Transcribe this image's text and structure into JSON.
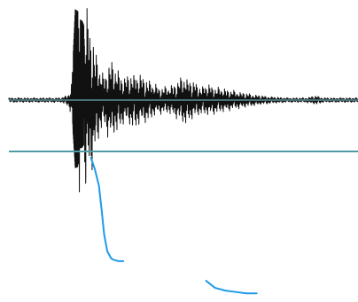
{
  "chart_data": {
    "type": "line",
    "title": "",
    "xlabel": "",
    "ylabel": "",
    "grid": false,
    "colors": {
      "background": "#ffffff",
      "waveform": "#111111",
      "baseline": "#6aa9b2",
      "axis_line": "#4f9aa6",
      "trace": "#1e9be8"
    },
    "series": [
      {
        "kind": "waveform",
        "x_range": [
          0,
          100
        ],
        "y_range": [
          -1,
          1
        ],
        "envelope": [
          [
            0,
            0.02
          ],
          [
            15,
            0.02
          ],
          [
            17,
            0.05
          ],
          [
            18,
            0.15
          ],
          [
            19,
            1.0
          ],
          [
            21,
            0.95
          ],
          [
            23,
            0.72
          ],
          [
            25,
            0.42
          ],
          [
            27,
            0.22
          ],
          [
            29,
            0.36
          ],
          [
            31,
            0.28
          ],
          [
            33,
            0.2
          ],
          [
            36,
            0.25
          ],
          [
            40,
            0.18
          ],
          [
            43,
            0.12
          ],
          [
            46,
            0.12
          ],
          [
            48,
            0.16
          ],
          [
            50,
            0.22
          ],
          [
            52,
            0.18
          ],
          [
            55,
            0.12
          ],
          [
            57,
            0.14
          ],
          [
            59,
            0.12
          ],
          [
            62,
            0.1
          ],
          [
            65,
            0.08
          ],
          [
            70,
            0.05
          ],
          [
            75,
            0.03
          ],
          [
            80,
            0.02
          ],
          [
            85,
            0.02
          ],
          [
            88,
            0.04
          ],
          [
            90,
            0.02
          ],
          [
            100,
            0.02
          ]
        ]
      },
      {
        "kind": "trace",
        "x_range": [
          0,
          100
        ],
        "y_range": [
          0,
          1
        ],
        "segments": [
          [
            [
              23.5,
              0.0
            ],
            [
              24.6,
              0.08
            ],
            [
              25.8,
              0.2
            ],
            [
              26.6,
              0.38
            ],
            [
              27.3,
              0.55
            ],
            [
              28.2,
              0.67
            ],
            [
              29.3,
              0.72
            ],
            [
              30.0,
              0.73
            ],
            [
              31.5,
              0.74
            ],
            [
              32.8,
              0.74
            ]
          ],
          [
            [
              56.5,
              0.88
            ],
            [
              59.0,
              0.93
            ],
            [
              62.0,
              0.95
            ],
            [
              65.0,
              0.96
            ],
            [
              68.0,
              0.97
            ],
            [
              71.0,
              0.97
            ]
          ]
        ]
      }
    ]
  }
}
